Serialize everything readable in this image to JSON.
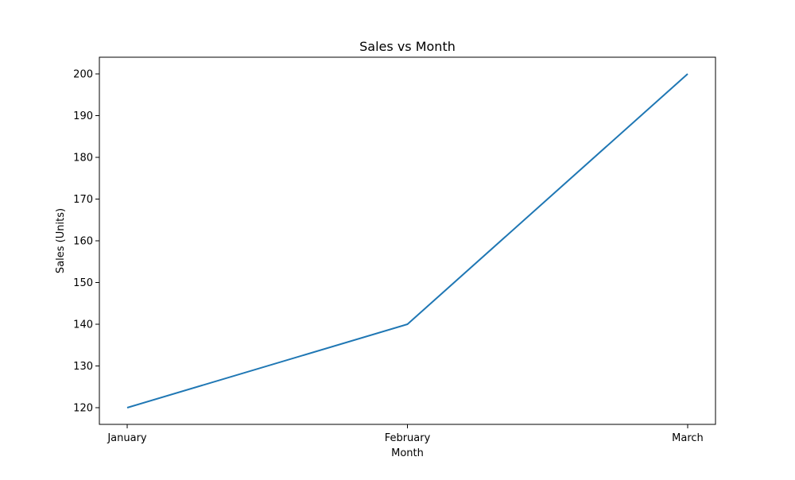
{
  "chart_data": {
    "type": "line",
    "title": "Sales vs Month",
    "xlabel": "Month",
    "ylabel": "Sales (Units)",
    "categories": [
      "January",
      "February",
      "March"
    ],
    "series": [
      {
        "values": [
          120,
          140,
          200
        ]
      }
    ],
    "ylim": [
      116,
      204
    ],
    "yticks": [
      120,
      130,
      140,
      150,
      160,
      170,
      180,
      190,
      200
    ],
    "grid": false,
    "line_color": "#1f77b4",
    "axis_color": "#000000"
  }
}
